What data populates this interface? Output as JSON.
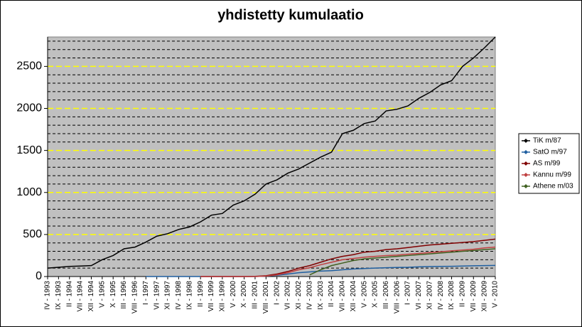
{
  "chart_data": {
    "type": "line",
    "title": "yhdistetty kumulaatio",
    "categories": [
      "IV - 1993",
      "IX - 1993",
      "II - 1994",
      "VII - 1994",
      "XII - 1994",
      "V - 1995",
      "X - 1995",
      "III - 1996",
      "VIII - 1996",
      "I - 1997",
      "VI - 1997",
      "XI - 1997",
      "IV - 1998",
      "IX - 1998",
      "II - 1999",
      "VII - 1999",
      "XII - 1999",
      "V - 2000",
      "X - 2000",
      "III - 2001",
      "VIII - 2001",
      "I - 2002",
      "VI - 2002",
      "XI - 2002",
      "IV - 2003",
      "IX - 2003",
      "II - 2004",
      "VII - 2004",
      "XII - 2004",
      "V - 2005",
      "X - 2005",
      "III - 2006",
      "VIII - 2006",
      "I - 2007",
      "VI - 2007",
      "XI - 2007",
      "IV - 2008",
      "IX - 2008",
      "II - 2009",
      "VII - 2009",
      "XII - 2009",
      "V - 2010"
    ],
    "series": [
      {
        "name": "TiK m/87",
        "color": "#000000",
        "values": [
          100,
          110,
          120,
          125,
          130,
          200,
          250,
          330,
          350,
          410,
          480,
          510,
          560,
          590,
          650,
          730,
          750,
          850,
          900,
          980,
          1100,
          1150,
          1230,
          1280,
          1350,
          1420,
          1480,
          1700,
          1740,
          1820,
          1850,
          1970,
          1990,
          2030,
          2120,
          2190,
          2280,
          2330,
          2500,
          2600,
          2720,
          2850
        ]
      },
      {
        "name": "SatO m/97",
        "color": "#1f5fa0",
        "values": [
          null,
          null,
          null,
          null,
          null,
          null,
          null,
          null,
          null,
          0,
          0,
          0,
          0,
          0,
          0,
          0,
          0,
          0,
          0,
          0,
          5,
          15,
          30,
          45,
          55,
          65,
          70,
          80,
          90,
          95,
          100,
          105,
          108,
          110,
          115,
          118,
          120,
          122,
          125,
          128,
          130,
          132
        ]
      },
      {
        "name": "AS m/99",
        "color": "#800000",
        "values": [
          null,
          null,
          null,
          null,
          null,
          null,
          null,
          null,
          null,
          null,
          null,
          null,
          null,
          null,
          0,
          0,
          0,
          0,
          0,
          2,
          10,
          30,
          60,
          100,
          130,
          170,
          210,
          240,
          260,
          290,
          300,
          320,
          330,
          345,
          360,
          375,
          385,
          395,
          405,
          415,
          430,
          445
        ]
      },
      {
        "name": "Kannu m/99",
        "color": "#c04040",
        "values": [
          null,
          null,
          null,
          null,
          null,
          null,
          null,
          null,
          null,
          null,
          null,
          null,
          null,
          null,
          0,
          0,
          0,
          0,
          0,
          0,
          5,
          20,
          45,
          80,
          105,
          140,
          170,
          200,
          215,
          230,
          240,
          250,
          255,
          265,
          275,
          285,
          295,
          305,
          315,
          325,
          340,
          350
        ]
      },
      {
        "name": "Athene m/03",
        "color": "#406020",
        "values": [
          null,
          null,
          null,
          null,
          null,
          null,
          null,
          null,
          null,
          null,
          null,
          null,
          null,
          null,
          null,
          null,
          null,
          null,
          null,
          null,
          null,
          null,
          null,
          null,
          20,
          80,
          130,
          160,
          190,
          210,
          220,
          230,
          240,
          250,
          260,
          270,
          280,
          290,
          300,
          310,
          320,
          330
        ]
      }
    ],
    "ylim": [
      0,
      2850
    ],
    "yticks": [
      0,
      500,
      1000,
      1500,
      2000,
      2500
    ],
    "minor_yticks": [
      100,
      200,
      300,
      400,
      600,
      700,
      800,
      900,
      1100,
      1200,
      1300,
      1400,
      1600,
      1700,
      1800,
      1900,
      2100,
      2200,
      2300,
      2400,
      2600,
      2700,
      2800
    ],
    "grid": true,
    "grid_color": "#ffff00",
    "plot_background": "#c0c0c0",
    "legend": "right"
  }
}
